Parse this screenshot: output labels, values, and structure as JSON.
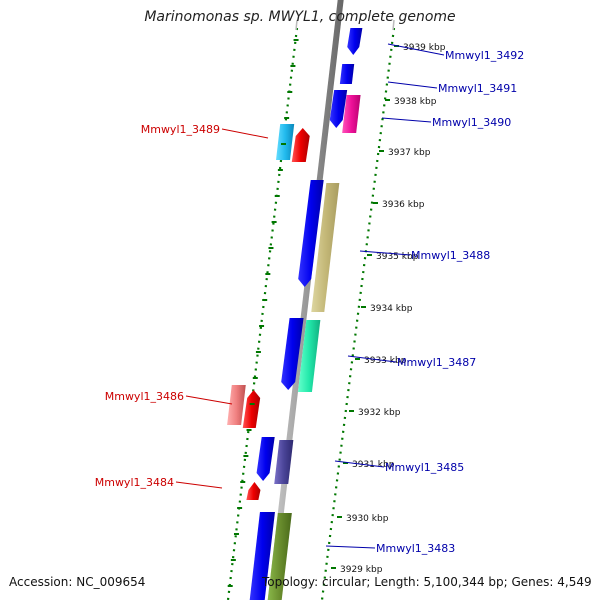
{
  "title": "Marinomonas sp. MWYL1, complete genome",
  "footer": {
    "accession": "Accession: NC_009654",
    "summary": "Topology: circular; Length: 5,100,344 bp; Genes: 4,549"
  },
  "ticks": [
    "3939 kbp",
    "3938 kbp",
    "3937 kbp",
    "3936 kbp",
    "3935 kbp",
    "3934 kbp",
    "3933 kbp",
    "3932 kbp",
    "3931 kbp",
    "3930 kbp",
    "3929 kbp"
  ],
  "gene_labels_right": [
    "Mmwyl1_3492",
    "Mmwyl1_3491",
    "Mmwyl1_3490",
    "Mmwyl1_3488",
    "Mmwyl1_3487",
    "Mmwyl1_3485",
    "Mmwyl1_3483"
  ],
  "gene_labels_left": [
    "Mmwyl1_3489",
    "Mmwyl1_3486",
    "Mmwyl1_3484"
  ],
  "colors": {
    "cds_blue": "#0000ee",
    "rna_red": "#ee0000",
    "label_right": "#0000aa",
    "label_left": "#cc0000",
    "tick_green": "#007700",
    "backbone": "#888888"
  }
}
